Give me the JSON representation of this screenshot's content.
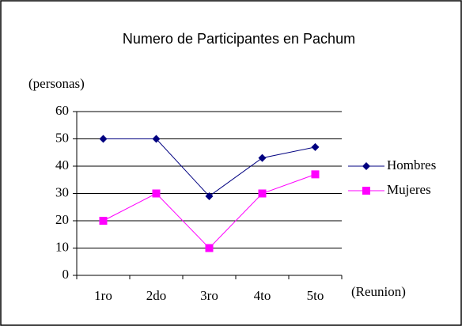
{
  "chart_data": {
    "type": "line",
    "title": "Numero de Participantes en Pachum",
    "y_label": "(personas)",
    "x_label": "(Reunion)",
    "categories": [
      "1ro",
      "2do",
      "3ro",
      "4to",
      "5to"
    ],
    "series": [
      {
        "name": "Hombres",
        "color": "#000080",
        "marker": "diamond",
        "values": [
          50,
          50,
          29,
          43,
          47
        ]
      },
      {
        "name": "Mujeres",
        "color": "#ff00ff",
        "marker": "square",
        "values": [
          20,
          30,
          10,
          30,
          37
        ]
      }
    ],
    "ylim": [
      0,
      60
    ],
    "yticks": [
      0,
      10,
      20,
      30,
      40,
      50,
      60
    ],
    "grid": true,
    "legend": "right"
  }
}
